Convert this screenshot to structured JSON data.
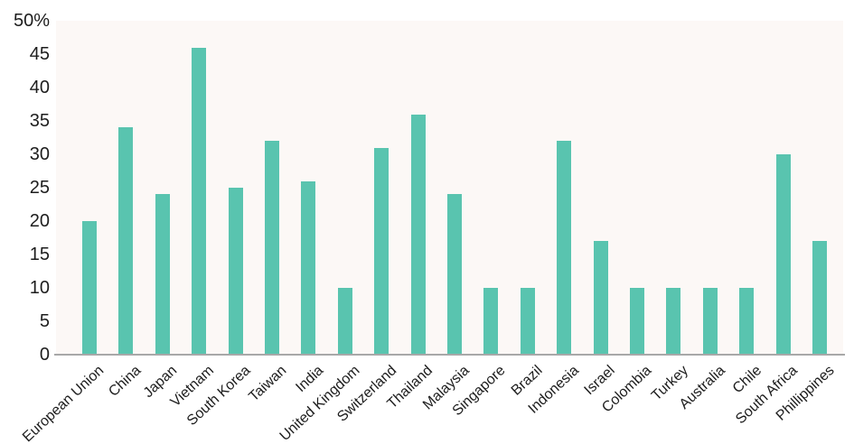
{
  "chart_data": {
    "type": "bar",
    "title": "",
    "xlabel": "",
    "ylabel": "",
    "categories": [
      "European Union",
      "China",
      "Japan",
      "Vietnam",
      "South Korea",
      "Taiwan",
      "India",
      "United Kingdom",
      "Switzerland",
      "Thailand",
      "Malaysia",
      "Singapore",
      "Brazil",
      "Indonesia",
      "Israel",
      "Colombia",
      "Turkey",
      "Australia",
      "Chile",
      "South Africa",
      "Phillippines"
    ],
    "values": [
      20,
      34,
      24,
      46,
      25,
      32,
      26,
      10,
      31,
      36,
      24,
      10,
      10,
      32,
      17,
      10,
      10,
      10,
      10,
      30,
      17
    ],
    "ylim": [
      0,
      50
    ],
    "yticks": [
      0,
      5,
      10,
      15,
      20,
      25,
      30,
      35,
      40,
      45,
      50
    ],
    "ytick_labels": [
      "0",
      "5",
      "10",
      "15",
      "20",
      "25",
      "30",
      "35",
      "40",
      "45",
      "50%"
    ],
    "grid": false,
    "legend": false,
    "x_labels_rotated": true,
    "colors": {
      "bar": "#59c4af",
      "plot_background": "#fcf8f6",
      "axis_line": "#a8a8a8",
      "text": "#1d1d1d",
      "page_background": "#ffffff"
    }
  }
}
